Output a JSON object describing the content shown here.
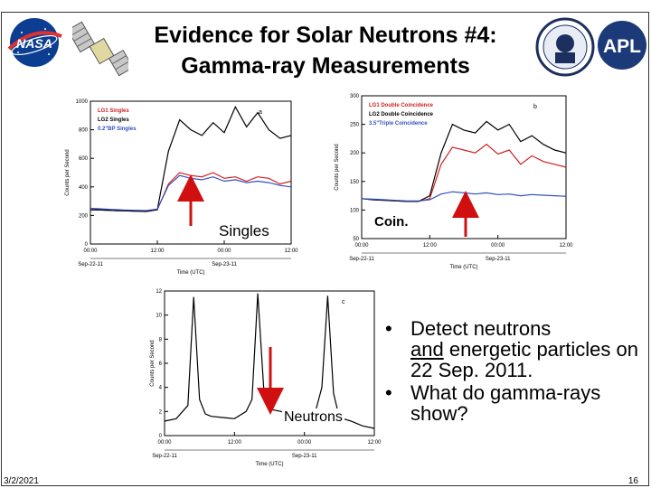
{
  "slide": {
    "title_line1": "Evidence for Solar Neutrons #4:",
    "title_line2": "Gamma-ray Measurements",
    "date": "3/2/2021",
    "page_number": "16"
  },
  "logos": {
    "left": "NASA",
    "right": "APL"
  },
  "labels": {
    "singles": "Singles",
    "coin": "Coin.",
    "neutrons": "Neutrons"
  },
  "bullets": [
    {
      "pre": "",
      "underlined": "and",
      "line1_head": "Detect neutrons",
      "rest": " energetic particles on 22 Sep. 2011."
    },
    {
      "text": "What do gamma-rays show?"
    }
  ],
  "bullet_texts": {
    "b1_line1": "Detect neutrons",
    "b1_underlined": "and",
    "b1_rest": " energetic particles on 22 Sep. 2011.",
    "b2": "What do gamma-rays show?"
  },
  "chart_data": [
    {
      "type": "line",
      "panel": "a",
      "ylabel": "Counts per Second",
      "xlabel": "Time (UTC)",
      "ylim": [
        0,
        1000
      ],
      "y_ticks": [
        "0",
        "200",
        "400",
        "600",
        "800",
        "1000"
      ],
      "x_ticks": [
        "00:00",
        "12:00",
        "00:00",
        "12:00"
      ],
      "date_ticks": [
        "Sep-22-11",
        "Sep-23-11"
      ],
      "legend": [
        "LG1 Singles",
        "LG2 Singles",
        "0.2\"BP Singles"
      ],
      "series": [
        {
          "name": "LG1 Singles",
          "color": "#d02020",
          "x": [
            0,
            2,
            4,
            6,
            8,
            10,
            12,
            14,
            16,
            18,
            20,
            22,
            24,
            26,
            28,
            30,
            32,
            34,
            36
          ],
          "values": [
            240,
            238,
            235,
            232,
            230,
            228,
            240,
            420,
            500,
            480,
            470,
            500,
            460,
            470,
            440,
            470,
            460,
            420,
            440
          ]
        },
        {
          "name": "LG2 Singles",
          "color": "#000000",
          "x": [
            0,
            2,
            4,
            6,
            8,
            10,
            12,
            14,
            16,
            18,
            20,
            22,
            24,
            26,
            28,
            30,
            32,
            34,
            36
          ],
          "values": [
            240,
            238,
            235,
            232,
            230,
            228,
            240,
            650,
            870,
            800,
            760,
            850,
            780,
            960,
            820,
            920,
            800,
            740,
            760
          ]
        },
        {
          "name": "0.2\"BP Singles",
          "color": "#3050c0",
          "x": [
            0,
            2,
            4,
            6,
            8,
            10,
            12,
            14,
            16,
            18,
            20,
            22,
            24,
            26,
            28,
            30,
            32,
            34,
            36
          ],
          "values": [
            250,
            246,
            242,
            238,
            236,
            234,
            245,
            410,
            480,
            460,
            450,
            470,
            440,
            450,
            430,
            440,
            430,
            410,
            400
          ]
        }
      ]
    },
    {
      "type": "line",
      "panel": "b",
      "ylabel": "Counts per Second",
      "xlabel": "Time (UTC)",
      "ylim": [
        50,
        300
      ],
      "y_ticks": [
        "50",
        "100",
        "150",
        "200",
        "250",
        "300"
      ],
      "x_ticks": [
        "00:00",
        "12:00",
        "00:00",
        "12:00"
      ],
      "date_ticks": [
        "Sep-22-11",
        "Sep-23-11"
      ],
      "legend": [
        "LG1 Double Coincidence",
        "LG2 Double Coincidence",
        "3.5\"Triple Coincidence"
      ],
      "series": [
        {
          "name": "LG1 Double Coincidence",
          "color": "#d02020",
          "x": [
            0,
            2,
            4,
            6,
            8,
            10,
            12,
            14,
            16,
            18,
            20,
            22,
            24,
            26,
            28,
            30,
            32,
            34,
            36
          ],
          "values": [
            120,
            118,
            117,
            116,
            115,
            115,
            120,
            180,
            210,
            205,
            200,
            215,
            198,
            205,
            180,
            195,
            185,
            180,
            175
          ]
        },
        {
          "name": "LG2 Double Coincidence",
          "color": "#000000",
          "x": [
            0,
            2,
            4,
            6,
            8,
            10,
            12,
            14,
            16,
            18,
            20,
            22,
            24,
            26,
            28,
            30,
            32,
            34,
            36
          ],
          "values": [
            120,
            118,
            117,
            116,
            115,
            115,
            125,
            200,
            250,
            240,
            235,
            255,
            240,
            250,
            220,
            230,
            215,
            205,
            200
          ]
        },
        {
          "name": "3.5\"Triple Coincidence",
          "color": "#3050c0",
          "x": [
            0,
            2,
            4,
            6,
            8,
            10,
            12,
            14,
            16,
            18,
            20,
            22,
            24,
            26,
            28,
            30,
            32,
            34,
            36
          ],
          "values": [
            120,
            119,
            118,
            117,
            116,
            116,
            118,
            128,
            132,
            130,
            128,
            130,
            127,
            128,
            125,
            127,
            126,
            125,
            124
          ]
        }
      ]
    },
    {
      "type": "line",
      "panel": "c",
      "ylabel": "Counts per Second",
      "xlabel": "Time (UTC)",
      "ylim": [
        0,
        12
      ],
      "y_ticks": [
        "0",
        "2",
        "4",
        "6",
        "8",
        "10",
        "12"
      ],
      "x_ticks": [
        "00:00",
        "12:00",
        "00:00",
        "12:00"
      ],
      "date_ticks": [
        "Sep-22-11",
        "Sep-23-11"
      ],
      "series": [
        {
          "name": "Counts",
          "color": "#000000",
          "x": [
            0,
            2,
            4,
            5,
            6,
            7,
            8,
            10,
            12,
            14,
            15,
            16,
            17,
            18,
            20,
            22,
            24,
            26,
            27,
            28,
            29,
            30,
            32,
            34,
            36
          ],
          "values": [
            1.2,
            1.4,
            2.5,
            11.5,
            3.0,
            1.8,
            1.6,
            1.5,
            1.4,
            2.0,
            3.0,
            11.8,
            4.0,
            2.2,
            2.0,
            1.6,
            1.5,
            2.2,
            4.0,
            11.6,
            3.5,
            1.5,
            1.2,
            0.8,
            0.6
          ]
        }
      ]
    }
  ]
}
